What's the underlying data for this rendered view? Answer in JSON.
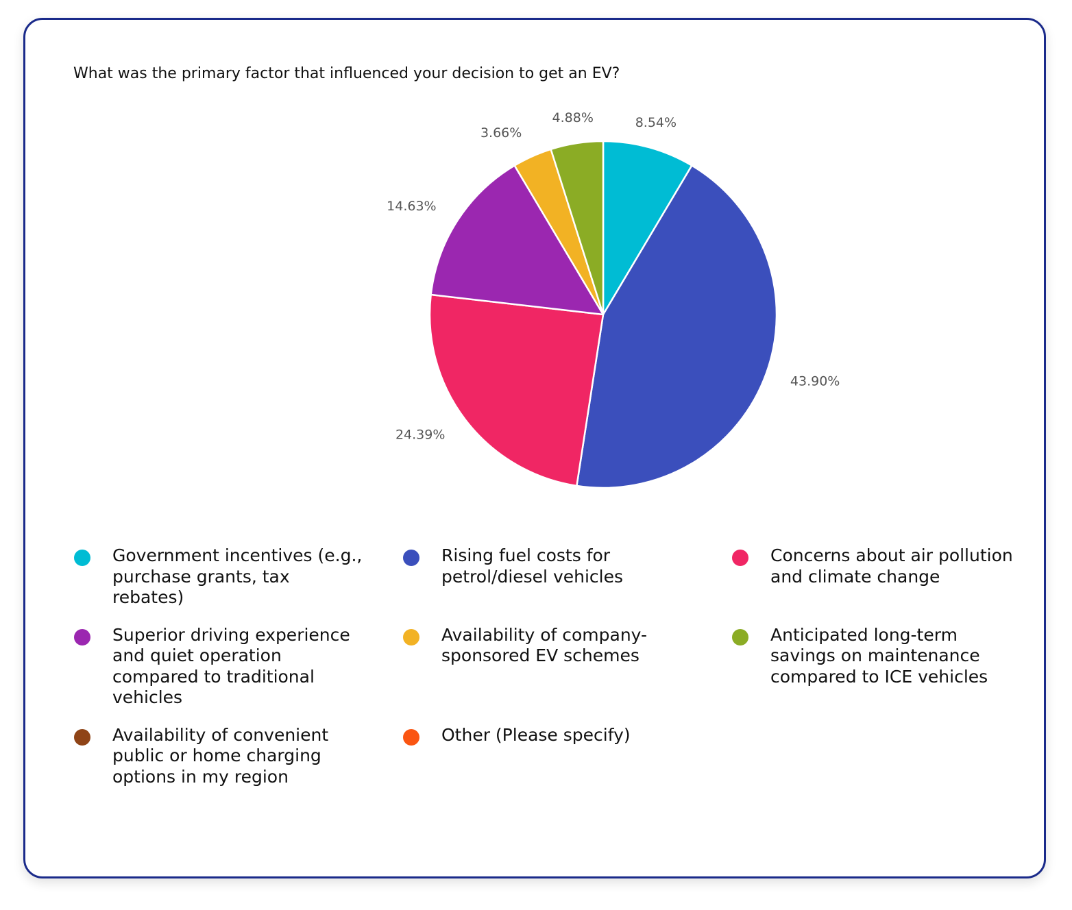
{
  "question": "What was the primary factor that influenced your decision to get an EV?",
  "chart_data": {
    "type": "pie",
    "title": "What was the primary factor that influenced your decision to get an EV?",
    "legend_position": "bottom",
    "slices": [
      {
        "label": "Government incentives (e.g., purchase grants, tax rebates)",
        "value": 8.54,
        "display": "8.54%",
        "color": "#00bcd4"
      },
      {
        "label": "Rising fuel costs for petrol/diesel vehicles",
        "value": 43.9,
        "display": "43.90%",
        "color": "#3b4fbc"
      },
      {
        "label": "Concerns about air pollution and climate change",
        "value": 24.39,
        "display": "24.39%",
        "color": "#f02664"
      },
      {
        "label": "Superior driving experience and quiet operation compared to traditional vehicles",
        "value": 14.63,
        "display": "14.63%",
        "color": "#9b27b0"
      },
      {
        "label": "Availability of company-sponsored EV schemes",
        "value": 3.66,
        "display": "3.66%",
        "color": "#f2b224"
      },
      {
        "label": "Anticipated long-term savings on maintenance compared to ICE vehicles",
        "value": 4.88,
        "display": "4.88%",
        "color": "#8bac25"
      },
      {
        "label": "Availability of convenient public or home charging options in my region",
        "value": 0,
        "display": "",
        "color": "#8f4417"
      },
      {
        "label": "Other (Please specify)",
        "value": 0,
        "display": "",
        "color": "#fa5512"
      }
    ]
  }
}
